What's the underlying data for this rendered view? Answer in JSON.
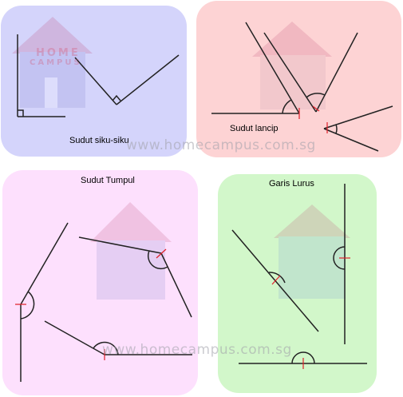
{
  "panels": [
    {
      "caption": "Sudut siku-siku",
      "color": "#d4d4fb"
    },
    {
      "caption": "Sudut lancip",
      "color": "#fdd3d4"
    },
    {
      "caption": "Sudut Tumpul",
      "color": "#fde0fd"
    },
    {
      "caption": "Garis Lurus",
      "color": "#d2f7ca"
    }
  ],
  "watermark": "www.homecampus.com.sg",
  "logo": {
    "line1": "HOME",
    "line2": "CAMPUS"
  },
  "colors": {
    "stroke": "#222222",
    "marker": "#e0202a"
  }
}
